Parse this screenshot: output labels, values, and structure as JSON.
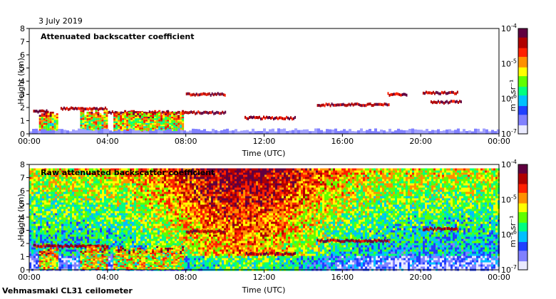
{
  "header": {
    "date": "3 July 2019"
  },
  "footer": {
    "instrument": "Vehmasmaki CL31 ceilometer"
  },
  "colorbar": {
    "ticks": [
      {
        "base": "10",
        "exp": "-4"
      },
      {
        "base": "10",
        "exp": "-5"
      },
      {
        "base": "10",
        "exp": "-6"
      },
      {
        "base": "10",
        "exp": "-7"
      }
    ],
    "label": "m⁻¹ sr⁻¹",
    "colors": [
      "#eaeaff",
      "#8080ff",
      "#2040ff",
      "#00c0ff",
      "#00ff80",
      "#60ff00",
      "#ffff00",
      "#ff9000",
      "#ff2000",
      "#b00000",
      "#600040"
    ]
  },
  "chart_data": [
    {
      "type": "heatmap",
      "title": "Attenuated backscatter coefficient",
      "xlabel": "Time (UTC)",
      "ylabel": "Height (km)",
      "xticks": [
        "00:00",
        "04:00",
        "08:00",
        "12:00",
        "16:00",
        "20:00",
        "00:00"
      ],
      "yticks": [
        "0",
        "1",
        "2",
        "3",
        "4",
        "5",
        "6",
        "7",
        "8"
      ],
      "xlim": [
        0,
        24
      ],
      "ylim": [
        0,
        8
      ],
      "color_scale": "log",
      "clim": [
        1e-07,
        0.0001
      ],
      "features": [
        {
          "kind": "cloud_layer",
          "t": [
            0.2,
            1.0
          ],
          "h": 1.7
        },
        {
          "kind": "cloud_layer",
          "t": [
            1.6,
            4.0
          ],
          "h": 1.9
        },
        {
          "kind": "cloud_layer",
          "t": [
            4.0,
            7.8
          ],
          "h": 1.6
        },
        {
          "kind": "cloud_layer",
          "t": [
            7.8,
            10.0
          ],
          "h": 1.6
        },
        {
          "kind": "cloud_layer",
          "t": [
            8.0,
            10.0
          ],
          "h": 3.0
        },
        {
          "kind": "cloud_layer",
          "t": [
            11.0,
            13.6
          ],
          "h": 1.2
        },
        {
          "kind": "cloud_layer",
          "t": [
            14.7,
            18.4
          ],
          "h": 2.2
        },
        {
          "kind": "cloud_layer",
          "t": [
            18.3,
            19.3
          ],
          "h": 3.0
        },
        {
          "kind": "cloud_layer",
          "t": [
            20.1,
            21.9
          ],
          "h": 3.1
        },
        {
          "kind": "cloud_layer",
          "t": [
            20.5,
            22.1
          ],
          "h": 2.4
        },
        {
          "kind": "precipitation",
          "t": [
            0.5,
            1.4
          ],
          "h": [
            0,
            1.6
          ]
        },
        {
          "kind": "precipitation",
          "t": [
            2.6,
            4.0
          ],
          "h": [
            0,
            1.7
          ]
        },
        {
          "kind": "precipitation",
          "t": [
            4.3,
            7.9
          ],
          "h": [
            0,
            1.7
          ]
        },
        {
          "kind": "boundary_layer",
          "t": [
            0,
            24
          ],
          "h": 0.3
        }
      ]
    },
    {
      "type": "heatmap",
      "title": "Raw attenuated backscatter coefficient",
      "xlabel": "Time (UTC)",
      "ylabel": "Height (km)",
      "xticks": [
        "00:00",
        "04:00",
        "08:00",
        "12:00",
        "16:00",
        "20:00",
        "00:00"
      ],
      "yticks": [
        "0",
        "1",
        "2",
        "3",
        "4",
        "5",
        "6",
        "7",
        "8"
      ],
      "xlim": [
        0,
        24
      ],
      "ylim": [
        0,
        8
      ],
      "color_scale": "log",
      "clim": [
        1e-07,
        0.0001
      ],
      "features": [
        {
          "kind": "noise",
          "t": [
            0,
            24
          ],
          "h": [
            0,
            7.7
          ]
        },
        {
          "kind": "cloud_layer",
          "t": [
            0.2,
            4.0
          ],
          "h": 1.8
        },
        {
          "kind": "cloud_layer",
          "t": [
            8.0,
            10.0
          ],
          "h": 2.9
        },
        {
          "kind": "cloud_layer",
          "t": [
            11.0,
            13.6
          ],
          "h": 1.2
        },
        {
          "kind": "cloud_layer",
          "t": [
            14.7,
            18.4
          ],
          "h": 2.2
        },
        {
          "kind": "cloud_layer",
          "t": [
            20.1,
            21.9
          ],
          "h": 3.1
        },
        {
          "kind": "precipitation",
          "t": [
            0.5,
            1.4
          ],
          "h": [
            0,
            1.6
          ]
        },
        {
          "kind": "precipitation",
          "t": [
            2.6,
            4.0
          ],
          "h": [
            0,
            1.7
          ]
        },
        {
          "kind": "precipitation",
          "t": [
            4.3,
            7.9
          ],
          "h": [
            0,
            1.7
          ]
        }
      ]
    }
  ]
}
